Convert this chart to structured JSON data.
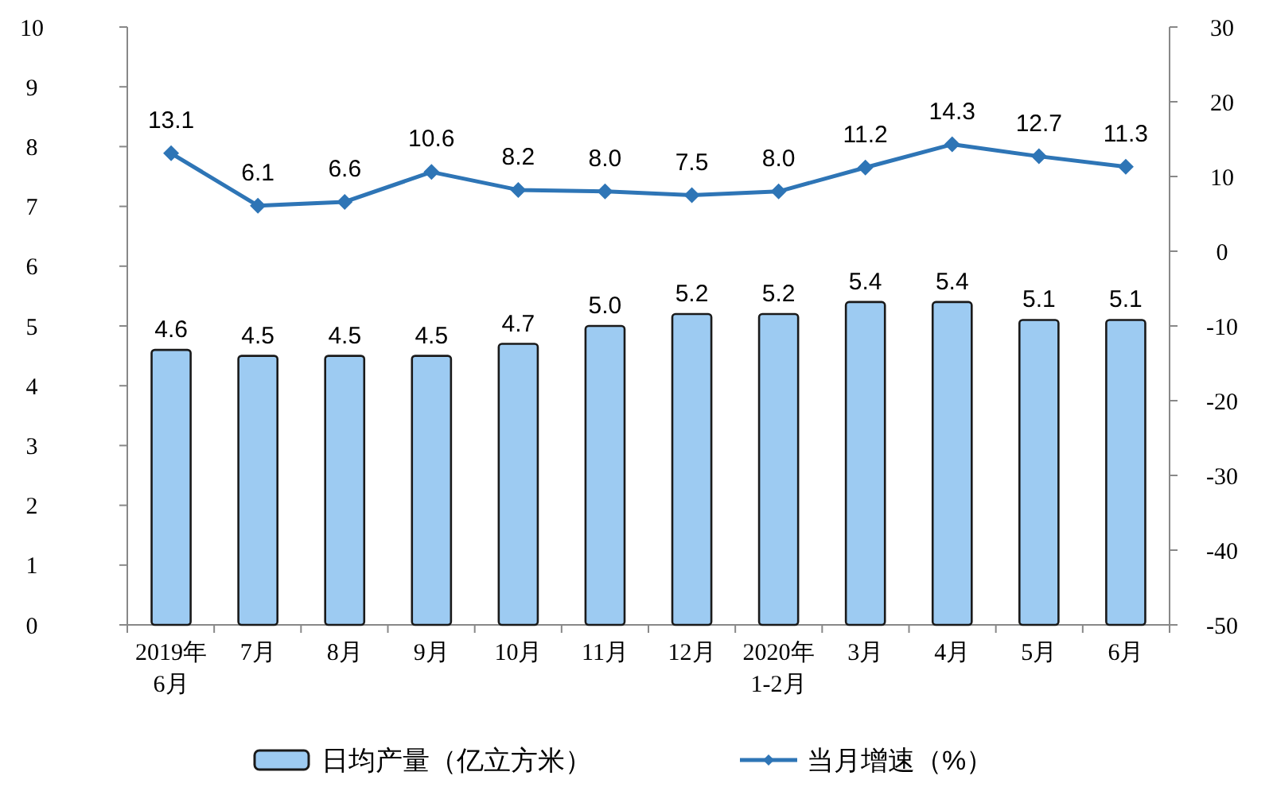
{
  "chart_data": {
    "type": "bar",
    "categories": [
      "2019年\n6月",
      "7月",
      "8月",
      "9月",
      "10月",
      "11月",
      "12月",
      "2020年\n1-2月",
      "3月",
      "4月",
      "5月",
      "6月"
    ],
    "series": [
      {
        "name": "日均产量（亿立方米）",
        "color": "#9dcbf2",
        "values": [
          4.6,
          4.5,
          4.5,
          4.5,
          4.7,
          5.0,
          5.2,
          5.2,
          5.4,
          5.4,
          5.1,
          5.1
        ],
        "value_labels": [
          "4.6",
          "4.5",
          "4.5",
          "4.5",
          "4.7",
          "5.0",
          "5.2",
          "5.2",
          "5.4",
          "5.4",
          "5.1",
          "5.1"
        ]
      },
      {
        "name": "当月增速（%）",
        "type": "line",
        "axis": "y2",
        "color": "#2e75b6",
        "marker": "diamond",
        "values": [
          13.1,
          6.1,
          6.6,
          10.6,
          8.2,
          8.0,
          7.5,
          8.0,
          11.2,
          14.3,
          12.7,
          11.3
        ],
        "value_labels": [
          "13.1",
          "6.1",
          "6.6",
          "10.6",
          "8.2",
          "8.0",
          "7.5",
          "8.0",
          "11.2",
          "14.3",
          "12.7",
          "11.3"
        ]
      }
    ],
    "ylim": [
      0,
      10
    ],
    "yticks": [
      0,
      1,
      2,
      3,
      4,
      5,
      6,
      7,
      8,
      9,
      10
    ],
    "y2lim": [
      -50,
      30
    ],
    "y2ticks": [
      -50,
      -40,
      -30,
      -20,
      -10,
      0,
      10,
      20,
      30
    ],
    "grid": false,
    "legend": "bottom"
  }
}
